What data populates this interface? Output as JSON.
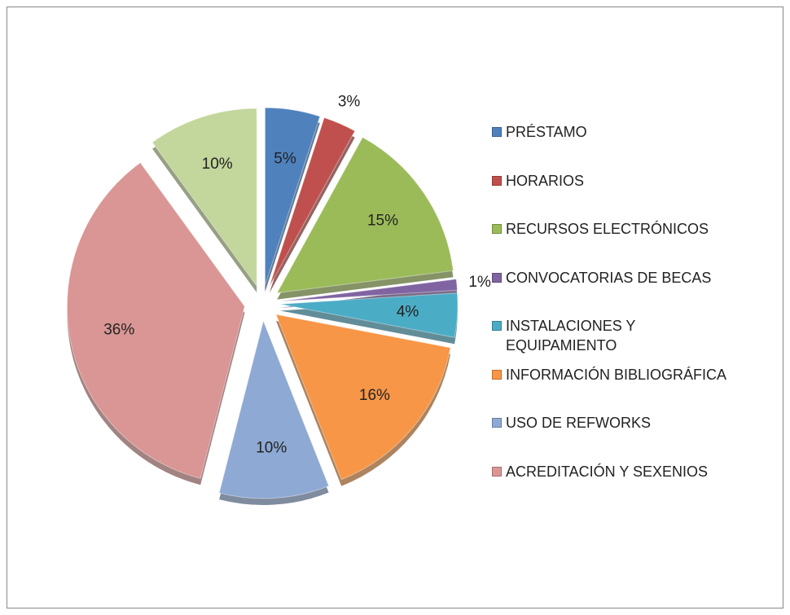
{
  "chart_data": {
    "type": "pie",
    "categories": [
      "PRÉSTAMO",
      "HORARIOS",
      "RECURSOS ELECTRÓNICOS",
      "CONVOCATORIAS DE BECAS",
      "INSTALACIONES Y EQUIPAMIENTO",
      "INFORMACIÓN BIBLIOGRÁFICA",
      "USO DE REFWORKS",
      "ACREDITACIÓN Y SEXENIOS",
      null
    ],
    "values": [
      5,
      3,
      15,
      1,
      4,
      16,
      10,
      36,
      10
    ],
    "value_labels": [
      "5%",
      "3%",
      "15%",
      "1%",
      "4%",
      "16%",
      "10%",
      "36%",
      "10%"
    ],
    "colors": [
      "#4f81bd",
      "#c0504d",
      "#9bbb59",
      "#8064a2",
      "#4bacc6",
      "#f79646",
      "#8ea9d3",
      "#d99694",
      "#c3d69b"
    ],
    "legend": "right"
  }
}
